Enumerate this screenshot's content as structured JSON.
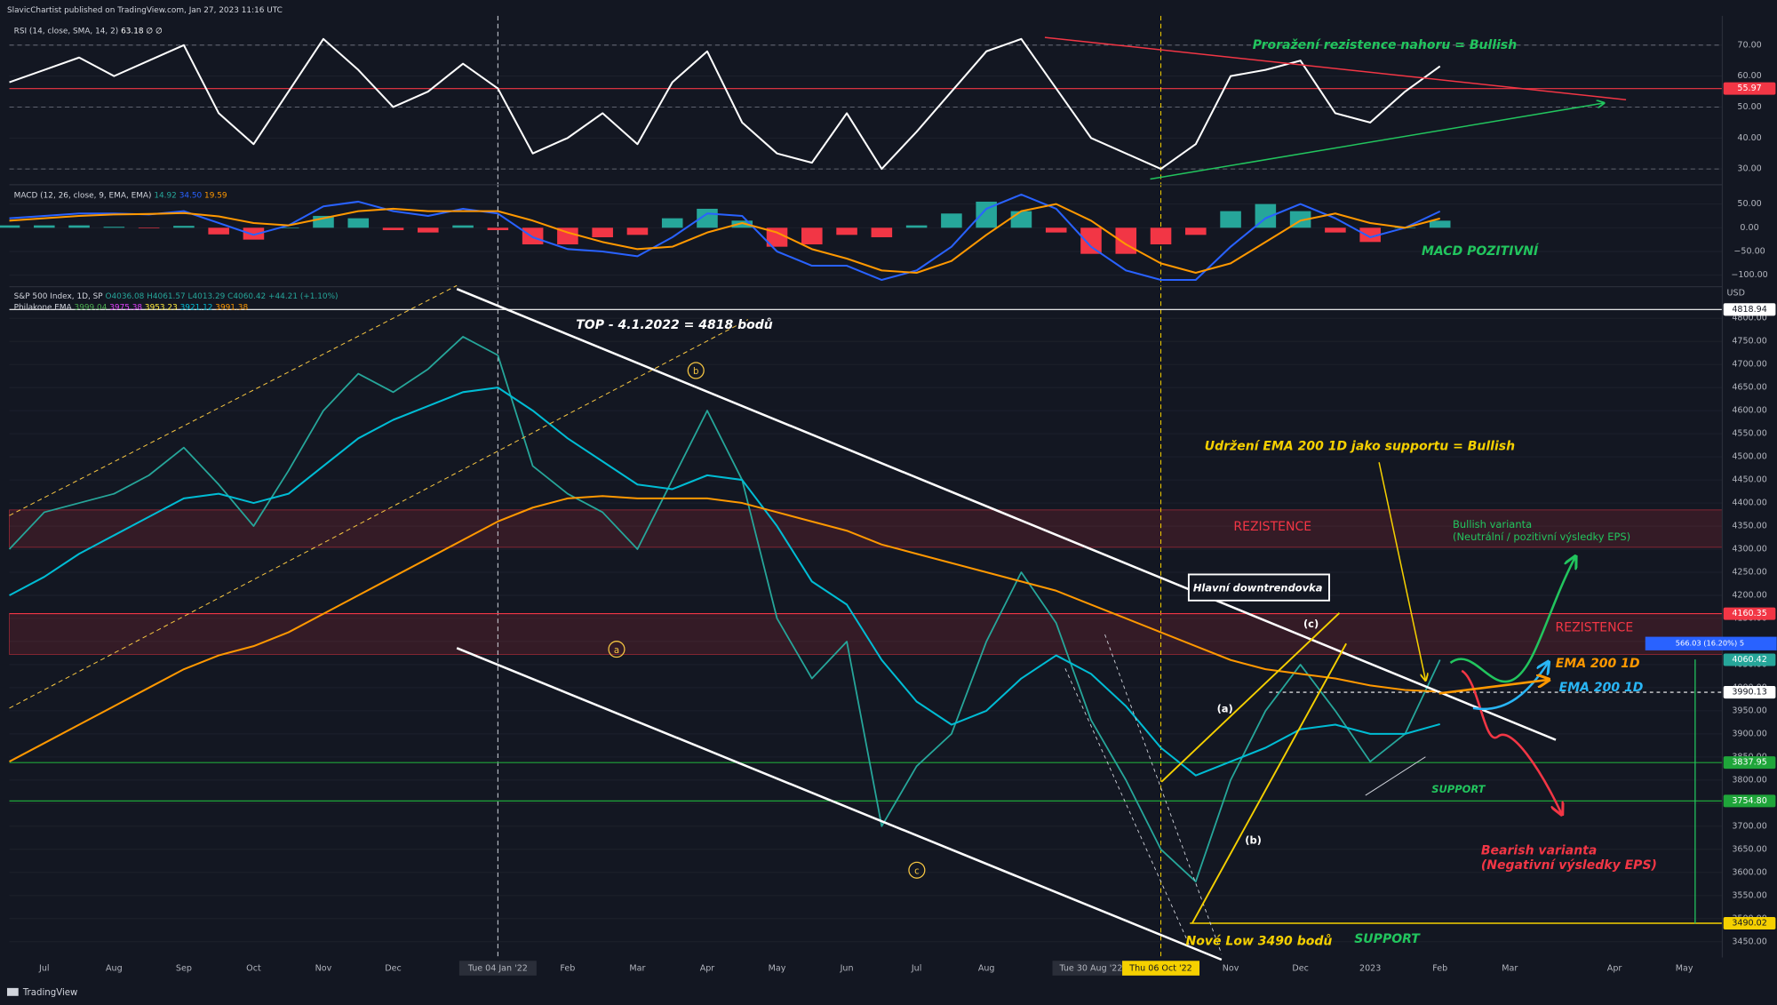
{
  "header": {
    "publisher": "SlavicChartist published on TradingView.com, Jan 27, 2023 11:16 UTC"
  },
  "footer": {
    "brand": "TradingView"
  },
  "chart_data": [
    {
      "type": "line",
      "legend": [
        "RSI (14, close, SMA, 14, 2)",
        "63.18",
        "∅",
        "∅"
      ],
      "series": [
        {
          "color": "#ffffff",
          "values": [
            58,
            62,
            66,
            60,
            65,
            70,
            48,
            38,
            55,
            72,
            62,
            50,
            55,
            64,
            56,
            35,
            40,
            48,
            38,
            58,
            68,
            45,
            35,
            32,
            48,
            30,
            42,
            55,
            68,
            72,
            56,
            40,
            35,
            30,
            38,
            60,
            62,
            65,
            48,
            45,
            55,
            63.18,
            null,
            null,
            null,
            null,
            null,
            null,
            null,
            null
          ]
        }
      ],
      "ylim": [
        26,
        78
      ],
      "yticks": [
        {
          "value": 70,
          "label": "70.00"
        },
        {
          "value": 60,
          "label": "60.00"
        },
        {
          "value": 50,
          "label": "50.00"
        },
        {
          "value": 40,
          "label": "40.00"
        },
        {
          "value": 30,
          "label": "30.00"
        }
      ],
      "grid": true,
      "levels": [
        70,
        50,
        30
      ],
      "tags": [
        {
          "value": 55.97,
          "label": "55.97",
          "color": "#f23645",
          "line": "solid"
        }
      ],
      "annotations": [
        "Proražení rezistence nahoru = Bullish"
      ]
    },
    {
      "type": "combo",
      "legend": [
        "MACD (12, 26, close, 9, EMA, EMA)",
        "14.92",
        "34.50",
        "19.59"
      ],
      "series": [
        {
          "style": "bar",
          "positive_color": "#26a69a",
          "negative_color": "#f23645",
          "values": [
            5,
            5,
            5,
            2,
            -1,
            4,
            -14,
            -25,
            0,
            25,
            20,
            -5,
            -10,
            5,
            -5,
            -35,
            -35,
            -20,
            -15,
            20,
            40,
            15,
            -40,
            -35,
            -15,
            -20,
            5,
            30,
            55,
            35,
            -10,
            -55,
            -55,
            -35,
            -15,
            35,
            50,
            35,
            -10,
            -30,
            0,
            14.92,
            null,
            null,
            null,
            null,
            null,
            null,
            null,
            null
          ]
        },
        {
          "color": "#2962ff",
          "values": [
            20,
            25,
            30,
            30,
            28,
            35,
            10,
            -15,
            5,
            45,
            55,
            35,
            25,
            40,
            30,
            -20,
            -45,
            -50,
            -60,
            -20,
            30,
            25,
            -50,
            -80,
            -80,
            -110,
            -90,
            -40,
            40,
            70,
            40,
            -40,
            -90,
            -110,
            -110,
            -40,
            20,
            50,
            20,
            -20,
            0,
            34.5,
            null,
            null,
            null,
            null,
            null,
            null,
            null,
            null
          ]
        },
        {
          "color": "#ff9800",
          "values": [
            15,
            20,
            25,
            28,
            29,
            31,
            24,
            10,
            5,
            20,
            35,
            40,
            35,
            35,
            35,
            15,
            -10,
            -30,
            -45,
            -40,
            -10,
            10,
            -10,
            -45,
            -65,
            -90,
            -95,
            -70,
            -15,
            35,
            50,
            15,
            -35,
            -75,
            -95,
            -75,
            -30,
            15,
            30,
            10,
            0,
            19.59,
            null,
            null,
            null,
            null,
            null,
            null,
            null,
            null
          ]
        }
      ],
      "ylim": [
        -117,
        86
      ],
      "yticks": [
        {
          "value": 50,
          "label": "50.00"
        },
        {
          "value": 0,
          "label": "0.00"
        },
        {
          "value": -50,
          "label": "−50.00"
        },
        {
          "value": -100,
          "label": "−100.00"
        }
      ],
      "grid": true,
      "annotations": [
        "MACD POZITIVNÍ"
      ]
    },
    {
      "type": "line",
      "legend": [
        "S&P 500 Index, 1D, SP",
        "O4036.08 H4061.57 L4013.29 C4060.42 +44.21 (+1.10%)",
        "Philakone EMA",
        "3999.04",
        "3975.38",
        "3953.23",
        "3921.12",
        "3991.38"
      ],
      "unit": "USD",
      "categories": [
        null,
        "Jul",
        null,
        "Aug",
        null,
        "Sep",
        null,
        "Oct",
        null,
        "Nov",
        null,
        "Dec",
        null,
        null,
        "Tue 04 Jan '22",
        null,
        "Feb",
        null,
        "Mar",
        null,
        "Apr",
        null,
        "May",
        null,
        "Jun",
        null,
        "Jul",
        null,
        "Aug",
        null,
        null,
        "Tue 30 Aug '22",
        null,
        "Thu 06 Oct '22",
        null,
        "Nov",
        null,
        "Dec",
        null,
        "2023",
        null,
        "Feb",
        null,
        "Mar",
        null,
        null,
        "Apr",
        null,
        "May",
        null
      ],
      "series": [
        {
          "color": "#26a69a",
          "values": [
            4300,
            4380,
            4400,
            4420,
            4460,
            4520,
            4440,
            4350,
            4470,
            4600,
            4680,
            4640,
            4690,
            4760,
            4720,
            4480,
            4420,
            4380,
            4300,
            4450,
            4600,
            4450,
            4150,
            4020,
            4100,
            3700,
            3830,
            3900,
            4100,
            4250,
            4140,
            3930,
            3800,
            3650,
            3580,
            3800,
            3950,
            4050,
            3950,
            3840,
            3900,
            4060.42,
            null,
            null,
            null,
            null,
            null,
            null,
            null,
            null
          ]
        },
        {
          "color": "#00bcd4",
          "values": [
            4200,
            4240,
            4290,
            4330,
            4370,
            4410,
            4420,
            4400,
            4420,
            4480,
            4540,
            4580,
            4610,
            4640,
            4650,
            4600,
            4540,
            4490,
            4440,
            4430,
            4460,
            4450,
            4350,
            4230,
            4180,
            4060,
            3970,
            3920,
            3950,
            4020,
            4070,
            4030,
            3960,
            3870,
            3810,
            3840,
            3870,
            3910,
            3920,
            3900,
            3900,
            3921.12,
            null,
            null,
            null,
            null,
            null,
            null,
            null,
            null
          ]
        },
        {
          "color": "#ff9800",
          "values": [
            3840,
            3880,
            3920,
            3960,
            4000,
            4040,
            4070,
            4090,
            4120,
            4160,
            4200,
            4240,
            4280,
            4320,
            4360,
            4390,
            4410,
            4415,
            4410,
            4410,
            4410,
            4400,
            4380,
            4360,
            4340,
            4310,
            4290,
            4270,
            4250,
            4230,
            4210,
            4180,
            4150,
            4120,
            4090,
            4060,
            4040,
            4030,
            4020,
            4005,
            3995,
            3991.38,
            null,
            null,
            null,
            null,
            null,
            null,
            null,
            null
          ]
        }
      ],
      "ylim": [
        3416,
        4839
      ],
      "yticks": [
        {
          "value": 4800,
          "label": "4800.00"
        },
        {
          "value": 4750,
          "label": "4750.00"
        },
        {
          "value": 4700,
          "label": "4700.00"
        },
        {
          "value": 4650,
          "label": "4650.00"
        },
        {
          "value": 4600,
          "label": "4600.00"
        },
        {
          "value": 4550,
          "label": "4550.00"
        },
        {
          "value": 4500,
          "label": "4500.00"
        },
        {
          "value": 4450,
          "label": "4450.00"
        },
        {
          "value": 4400,
          "label": "4400.00"
        },
        {
          "value": 4350,
          "label": "4350.00"
        },
        {
          "value": 4300,
          "label": "4300.00"
        },
        {
          "value": 4250,
          "label": "4250.00"
        },
        {
          "value": 4200,
          "label": "4200.00"
        },
        {
          "value": 4150,
          "label": "4150.00"
        },
        {
          "value": 4100,
          "label": "4100.00"
        },
        {
          "value": 4050,
          "label": "4050.00"
        },
        {
          "value": 4000,
          "label": "4000.00"
        },
        {
          "value": 3950,
          "label": "3950.00"
        },
        {
          "value": 3900,
          "label": "3900.00"
        },
        {
          "value": 3850,
          "label": "3850.00"
        },
        {
          "value": 3800,
          "label": "3800.00"
        },
        {
          "value": 3750,
          "label": "3750.00"
        },
        {
          "value": 3700,
          "label": "3700.00"
        },
        {
          "value": 3650,
          "label": "3650.00"
        },
        {
          "value": 3600,
          "label": "3600.00"
        },
        {
          "value": 3550,
          "label": "3550.00"
        },
        {
          "value": 3500,
          "label": "3500.00"
        },
        {
          "value": 3450,
          "label": "3450.00"
        }
      ],
      "grid": true,
      "zones": [
        [
          4304,
          4385
        ],
        [
          4072,
          4160.35
        ]
      ],
      "zone_color": "#f23645",
      "tags": [
        {
          "value": 4818.94,
          "label": "4818.94",
          "color": "#ffffff",
          "line": "solid"
        },
        {
          "value": 4160.35,
          "label": "4160.35",
          "color": "#f23645",
          "line": "solid"
        },
        {
          "value": 4060.42,
          "label": "4060.42",
          "color": "#26a69a",
          "line": "none"
        },
        {
          "value": 3990.13,
          "label": "3990.13",
          "color": "#ffffff",
          "line": "dashed"
        },
        {
          "value": 3837.95,
          "label": "3837.95",
          "color": "#1fa53a",
          "line": "solid"
        },
        {
          "value": 3754.8,
          "label": "3754.80",
          "color": "#1fa53a",
          "line": "solid"
        },
        {
          "value": 3490.02,
          "label": "3490.02",
          "color": "#f5d000",
          "line": "partial"
        }
      ],
      "vlines": [
        {
          "category": 14,
          "color": "#d1d4dc"
        },
        {
          "category": 33,
          "color": "#f5d000"
        }
      ],
      "x_badges": [
        {
          "category": 14,
          "color": "#2a2e39"
        },
        {
          "category": 31,
          "color": "#2a2e39"
        },
        {
          "category": 33,
          "color": "#f5d000"
        }
      ],
      "annotations": [
        "TOP - 4.1.2022 = 4818 bodů",
        "Udržení EMA 200 1D jako supportu = Bullish",
        "REZISTENCE",
        "REZISTENCE",
        "Bullish varianta",
        "(Neutrální / pozitivní výsledky EPS)",
        "Hlavní downtrendovka",
        "(a)",
        "(b)",
        "(c)",
        "EMA 200 1D",
        "EMA 200 1D",
        "SUPPORT",
        "SUPPORT",
        "Bearish varianta",
        "(Negativní výsledky EPS)",
        "Nové Low 3490 bodů",
        "a",
        "b",
        "c",
        "566.03 (16.20%) 5"
      ]
    }
  ]
}
